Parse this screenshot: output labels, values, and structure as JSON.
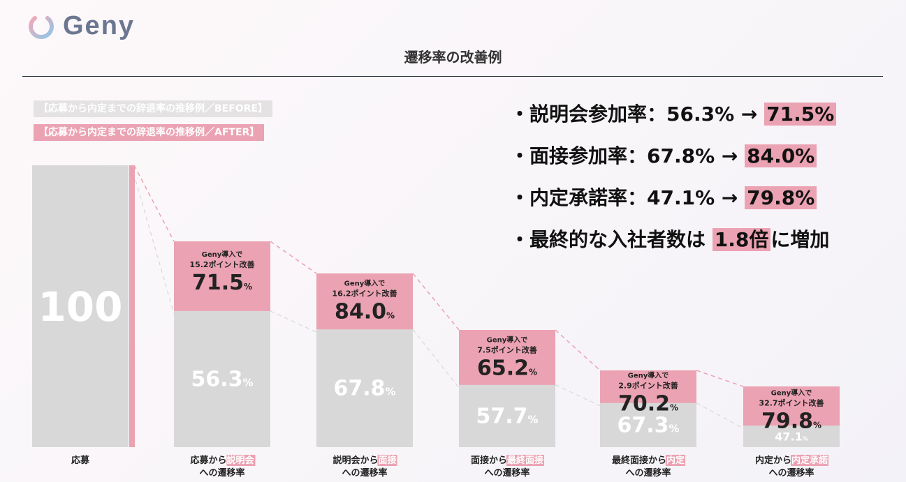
{
  "header": {
    "logo_text": "Geny",
    "title": "遷移率の改善例"
  },
  "legend": {
    "before": "【応募から内定までの辞退率の推移例／BEFORE】",
    "after": "【応募から内定までの辞退率の推移例／AFTER】"
  },
  "summary": [
    {
      "bullet": "・",
      "label": "説明会参加率：56.3% → ",
      "highlight": "71.5%",
      "suffix": ""
    },
    {
      "bullet": "・",
      "label": "面接参加率：67.8% → ",
      "highlight": "84.0%",
      "suffix": ""
    },
    {
      "bullet": "・",
      "label": "内定承諾率：47.1% → ",
      "highlight": "79.8%",
      "suffix": ""
    },
    {
      "bullet": "・",
      "label": "最終的な入社者数は ",
      "highlight": "1.8倍",
      "suffix": "に増加"
    }
  ],
  "colors": {
    "before": "#d9d8d9",
    "after": "#eba2b2",
    "accent_text": "#222222"
  },
  "chart_data": {
    "type": "bar",
    "title": "遷移率の改善例",
    "ylim": [
      0,
      100
    ],
    "categories": [
      {
        "prefix": "応募",
        "highlight": "",
        "line2": ""
      },
      {
        "prefix": "応募から",
        "highlight": "説明会",
        "line2": "への遷移率"
      },
      {
        "prefix": "説明会から",
        "highlight": "面接",
        "line2": "への遷移率"
      },
      {
        "prefix": "面接から",
        "highlight": "最終面接",
        "line2": "への遷移率"
      },
      {
        "prefix": "最終面接から",
        "highlight": "内定",
        "line2": "への遷移率"
      },
      {
        "prefix": "内定から",
        "highlight": "内定承諾",
        "line2": "への遷移率"
      }
    ],
    "series": [
      {
        "name": "BEFORE",
        "values": [
          100,
          56.3,
          67.8,
          57.7,
          67.3,
          47.1
        ],
        "labels": [
          "100",
          "56.3",
          "67.8",
          "57.7",
          "67.3",
          "47.1"
        ]
      },
      {
        "name": "AFTER",
        "values": [
          100,
          71.5,
          84.0,
          65.2,
          70.2,
          79.8
        ],
        "labels": [
          "",
          "71.5",
          "84.0",
          "65.2",
          "70.2",
          "79.8"
        ]
      }
    ],
    "annotations": [
      null,
      {
        "line1": "Geny導入で",
        "line2": "15.2ポイント改善"
      },
      {
        "line1": "Geny導入で",
        "line2": "16.2ポイント改善"
      },
      {
        "line1": "Geny導入で",
        "line2": "7.5ポイント改善"
      },
      {
        "line1": "Geny導入で",
        "line2": "2.9ポイント改善"
      },
      {
        "line1": "Geny導入で",
        "line2": "32.7ポイント改善"
      }
    ],
    "unit": "%"
  }
}
